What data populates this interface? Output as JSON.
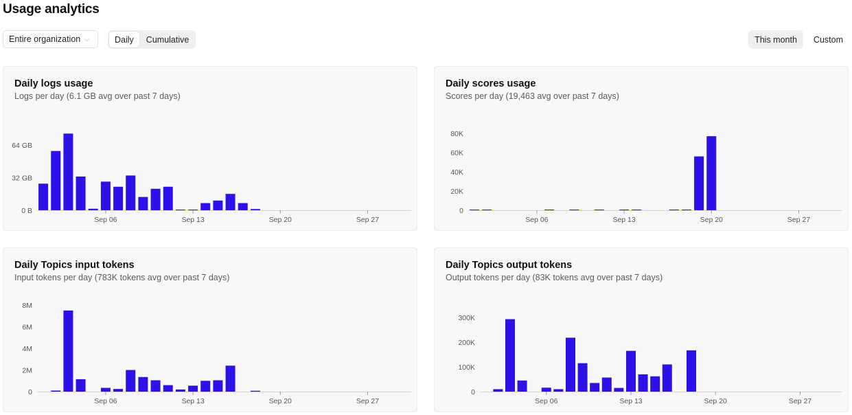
{
  "header": {
    "title": "Usage analytics"
  },
  "toolbar": {
    "org_select": "Entire organization",
    "view_modes": [
      "Daily",
      "Cumulative"
    ],
    "active_view": "Daily",
    "ranges": [
      "This month",
      "Custom"
    ],
    "active_range": "This month"
  },
  "colors": {
    "bar": "#2d12e8",
    "axis": "#d4d4d4"
  },
  "charts": [
    {
      "title": "Daily logs usage",
      "subtitle": "Logs per day (6.1 GB avg over past 7 days)",
      "chart_data": {
        "type": "bar",
        "x_ticks": [
          "Sep 06",
          "Sep 13",
          "Sep 20",
          "Sep 27"
        ],
        "y_ticks": [
          "0 B",
          "32 GB",
          "64 GB"
        ],
        "y_tick_values": [
          0,
          32,
          64
        ],
        "unit": "GB",
        "ylim": [
          0,
          80
        ],
        "x": [
          "Sep 01",
          "Sep 02",
          "Sep 03",
          "Sep 04",
          "Sep 05",
          "Sep 06",
          "Sep 07",
          "Sep 08",
          "Sep 09",
          "Sep 10",
          "Sep 11",
          "Sep 12",
          "Sep 13",
          "Sep 14",
          "Sep 15",
          "Sep 16",
          "Sep 17",
          "Sep 18",
          "Sep 19",
          "Sep 20",
          "Sep 21",
          "Sep 22",
          "Sep 23",
          "Sep 24",
          "Sep 25",
          "Sep 26",
          "Sep 27",
          "Sep 28",
          "Sep 29",
          "Sep 30"
        ],
        "values": [
          26,
          58,
          75,
          33,
          1.5,
          28,
          23,
          34,
          13,
          21,
          23,
          0.3,
          0.2,
          7,
          9.5,
          16,
          7,
          1.2,
          0,
          0,
          0,
          0,
          0,
          0,
          0,
          0,
          0,
          0,
          0,
          0
        ]
      }
    },
    {
      "title": "Daily scores usage",
      "subtitle": "Scores per day (19,463 avg over past 7 days)",
      "chart_data": {
        "type": "bar",
        "x_ticks": [
          "Sep 06",
          "Sep 13",
          "Sep 20",
          "Sep 27"
        ],
        "y_ticks": [
          "0",
          "20K",
          "40K",
          "60K",
          "80K"
        ],
        "y_tick_values": [
          0,
          20000,
          40000,
          60000,
          80000
        ],
        "ylim": [
          0,
          80000
        ],
        "x": [
          "Sep 01",
          "Sep 02",
          "Sep 03",
          "Sep 04",
          "Sep 05",
          "Sep 06",
          "Sep 07",
          "Sep 08",
          "Sep 09",
          "Sep 10",
          "Sep 11",
          "Sep 12",
          "Sep 13",
          "Sep 14",
          "Sep 15",
          "Sep 16",
          "Sep 17",
          "Sep 18",
          "Sep 19",
          "Sep 20",
          "Sep 21",
          "Sep 22",
          "Sep 23",
          "Sep 24",
          "Sep 25",
          "Sep 26",
          "Sep 27",
          "Sep 28",
          "Sep 29",
          "Sep 30"
        ],
        "values": [
          300,
          300,
          0,
          0,
          0,
          0,
          300,
          0,
          300,
          0,
          300,
          0,
          700,
          700,
          0,
          0,
          700,
          300,
          56000,
          77000,
          0,
          0,
          0,
          0,
          0,
          0,
          0,
          0,
          0,
          0
        ]
      }
    },
    {
      "title": "Daily Topics input tokens",
      "subtitle": "Input tokens per day (783K tokens avg over past 7 days)",
      "chart_data": {
        "type": "bar",
        "x_ticks": [
          "Sep 06",
          "Sep 13",
          "Sep 20",
          "Sep 27"
        ],
        "y_ticks": [
          "0",
          "2M",
          "4M",
          "6M",
          "8M"
        ],
        "y_tick_values": [
          0,
          2000000,
          4000000,
          6000000,
          8000000
        ],
        "ylim": [
          0,
          8000000
        ],
        "x": [
          "Sep 01",
          "Sep 02",
          "Sep 03",
          "Sep 04",
          "Sep 05",
          "Sep 06",
          "Sep 07",
          "Sep 08",
          "Sep 09",
          "Sep 10",
          "Sep 11",
          "Sep 12",
          "Sep 13",
          "Sep 14",
          "Sep 15",
          "Sep 16",
          "Sep 17",
          "Sep 18",
          "Sep 19",
          "Sep 20",
          "Sep 21",
          "Sep 22",
          "Sep 23",
          "Sep 24",
          "Sep 25",
          "Sep 26",
          "Sep 27",
          "Sep 28",
          "Sep 29",
          "Sep 30"
        ],
        "values": [
          0,
          100000,
          7500000,
          1150000,
          0,
          350000,
          250000,
          2000000,
          1350000,
          1050000,
          600000,
          200000,
          550000,
          1000000,
          1050000,
          2400000,
          0,
          80000,
          0,
          0,
          0,
          0,
          0,
          0,
          0,
          0,
          0,
          0,
          0,
          0
        ]
      }
    },
    {
      "title": "Daily Topics output tokens",
      "subtitle": "Output tokens per day (83K tokens avg over past 7 days)",
      "chart_data": {
        "type": "bar",
        "x_ticks": [
          "Sep 06",
          "Sep 13",
          "Sep 20",
          "Sep 27"
        ],
        "y_ticks": [
          "0",
          "100K",
          "200K",
          "300K"
        ],
        "y_tick_values": [
          0,
          100000,
          200000,
          300000
        ],
        "ylim": [
          0,
          300000
        ],
        "x": [
          "Sep 01",
          "Sep 02",
          "Sep 03",
          "Sep 04",
          "Sep 05",
          "Sep 06",
          "Sep 07",
          "Sep 08",
          "Sep 09",
          "Sep 10",
          "Sep 11",
          "Sep 12",
          "Sep 13",
          "Sep 14",
          "Sep 15",
          "Sep 16",
          "Sep 17",
          "Sep 18",
          "Sep 19",
          "Sep 20",
          "Sep 21",
          "Sep 22",
          "Sep 23",
          "Sep 24",
          "Sep 25",
          "Sep 26",
          "Sep 27",
          "Sep 28",
          "Sep 29",
          "Sep 30"
        ],
        "values": [
          0,
          10000,
          293000,
          45000,
          0,
          16000,
          10000,
          218000,
          115000,
          35000,
          57000,
          15000,
          165000,
          70000,
          62000,
          110000,
          0,
          167000,
          0,
          0,
          0,
          0,
          0,
          0,
          0,
          0,
          0,
          0,
          0,
          0
        ]
      }
    }
  ]
}
